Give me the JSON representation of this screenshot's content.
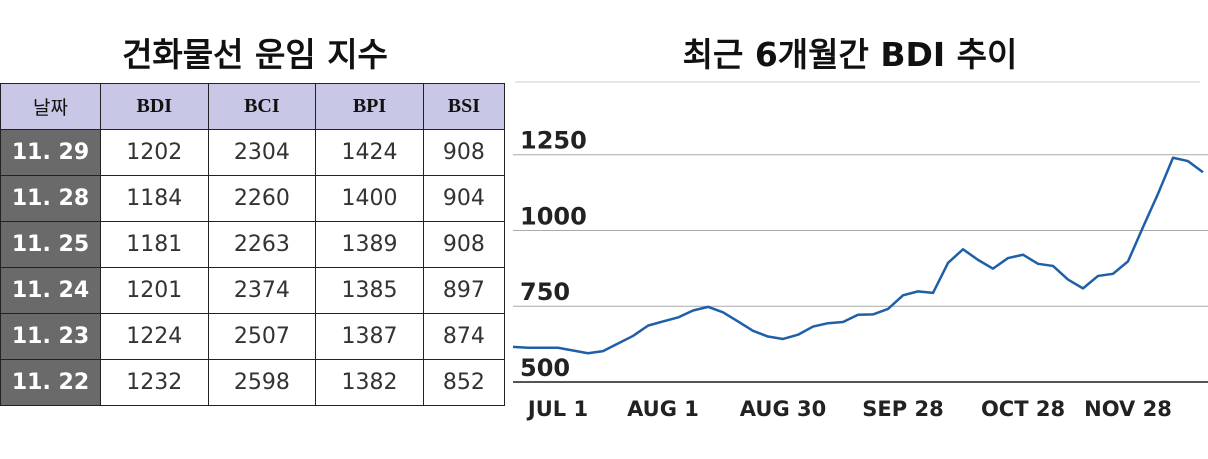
{
  "table": {
    "title": "건화물선 운임 지수",
    "columns": [
      "날짜",
      "BDI",
      "BCI",
      "BPI",
      "BSI"
    ],
    "rows": [
      [
        "11. 29",
        1202,
        2304,
        1424,
        908
      ],
      [
        "11. 28",
        1184,
        2260,
        1400,
        904
      ],
      [
        "11. 25",
        1181,
        2263,
        1389,
        908
      ],
      [
        "11. 24",
        1201,
        2374,
        1385,
        897
      ],
      [
        "11. 23",
        1224,
        2507,
        1387,
        874
      ],
      [
        "11. 22",
        1232,
        2598,
        1382,
        852
      ]
    ]
  },
  "chart_data": {
    "type": "line",
    "title": "최근 6개월간 BDI 추이",
    "categories": [
      null,
      null,
      null,
      "JUL 1",
      null,
      null,
      null,
      null,
      null,
      null,
      "AUG 1",
      null,
      null,
      null,
      null,
      null,
      null,
      null,
      "AUG 30",
      null,
      null,
      null,
      null,
      null,
      null,
      null,
      "SEP 28",
      null,
      null,
      null,
      null,
      null,
      null,
      null,
      "OCT 28",
      null,
      null,
      null,
      null,
      null,
      null,
      "NOV 28",
      null,
      null,
      null,
      null,
      null
    ],
    "values": [
      616,
      613,
      613,
      613,
      604,
      595,
      602,
      627,
      652,
      686,
      700,
      713,
      736,
      748,
      730,
      700,
      669,
      650,
      642,
      656,
      683,
      694,
      698,
      722,
      723,
      741,
      786,
      799,
      794,
      893,
      938,
      903,
      874,
      909,
      920,
      890,
      883,
      838,
      809,
      850,
      857,
      898,
      1011,
      1121,
      1240,
      1229,
      1192
    ],
    "color": "#1f5fa8",
    "ylim": [
      500,
      1490
    ],
    "yticks": [
      500,
      750,
      1000,
      1250
    ],
    "grid": true
  }
}
